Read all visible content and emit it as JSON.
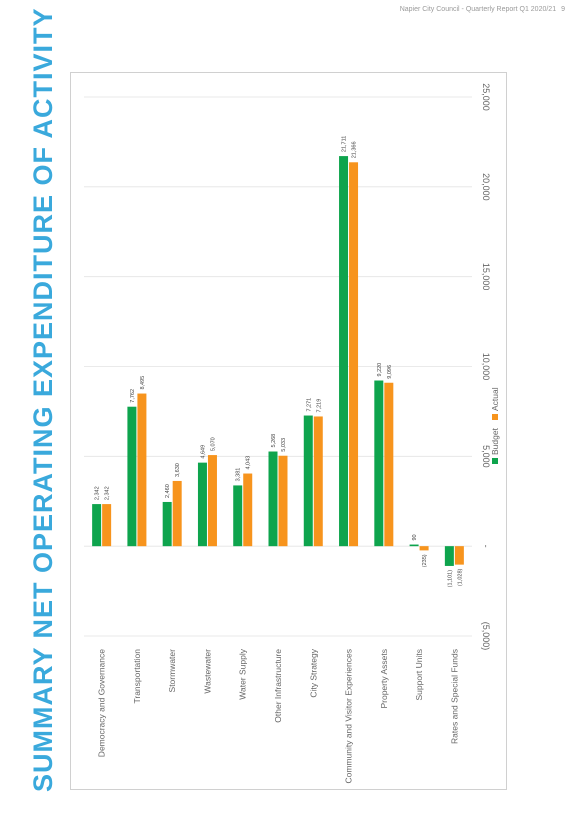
{
  "header": {
    "text": "Napier City Council - Quarterly Report Q1 2020/21",
    "page": "9"
  },
  "title": "SUMMARY NET OPERATING EXPENDITURE OF ACTIVITY",
  "colors": {
    "title": "#3aa9dc",
    "budget": "#0ea44d",
    "actual": "#f7941d",
    "grid": "#e3e3e3",
    "axis_text": "#666666",
    "label_text": "#444444"
  },
  "chart_data": {
    "type": "bar",
    "orientation": "rotated",
    "categories": [
      "Democracy and Governance",
      "Transportation",
      "Stormwater",
      "Wastewater",
      "Water Supply",
      "Other Infrastructure",
      "City Strategy",
      "Community and Visitor Experiences",
      "Property Assets",
      "Support Units",
      "Rates and Special Funds"
    ],
    "series": [
      {
        "name": "Budget",
        "values": [
          2342,
          7762,
          2460,
          4649,
          3381,
          5268,
          7271,
          21711,
          9220,
          90,
          -1101
        ],
        "labels": [
          "2,342",
          "7,762",
          "2,460",
          "4,649",
          "3,381",
          "5,268",
          "7,271",
          "21,711",
          "9,220",
          "90",
          "(1,101)"
        ]
      },
      {
        "name": "Actual",
        "values": [
          2342,
          8495,
          3630,
          5070,
          4043,
          5033,
          7219,
          21366,
          9096,
          -235,
          -1028
        ],
        "labels": [
          "2,342",
          "8,495",
          "3,630",
          "5,070",
          "4,043",
          "5,033",
          "7,219",
          "21,366",
          "9,096",
          "(235)",
          "(1,028)"
        ]
      }
    ],
    "value_axis": {
      "min": -5000,
      "max": 25000,
      "ticks": [
        -5000,
        0,
        5000,
        10000,
        15000,
        20000,
        25000
      ],
      "tick_labels": [
        "(5,000)",
        "-",
        "5,000",
        "10,000",
        "15,000",
        "20,000",
        "25,000"
      ]
    },
    "grid": true,
    "legend_position": "right"
  }
}
